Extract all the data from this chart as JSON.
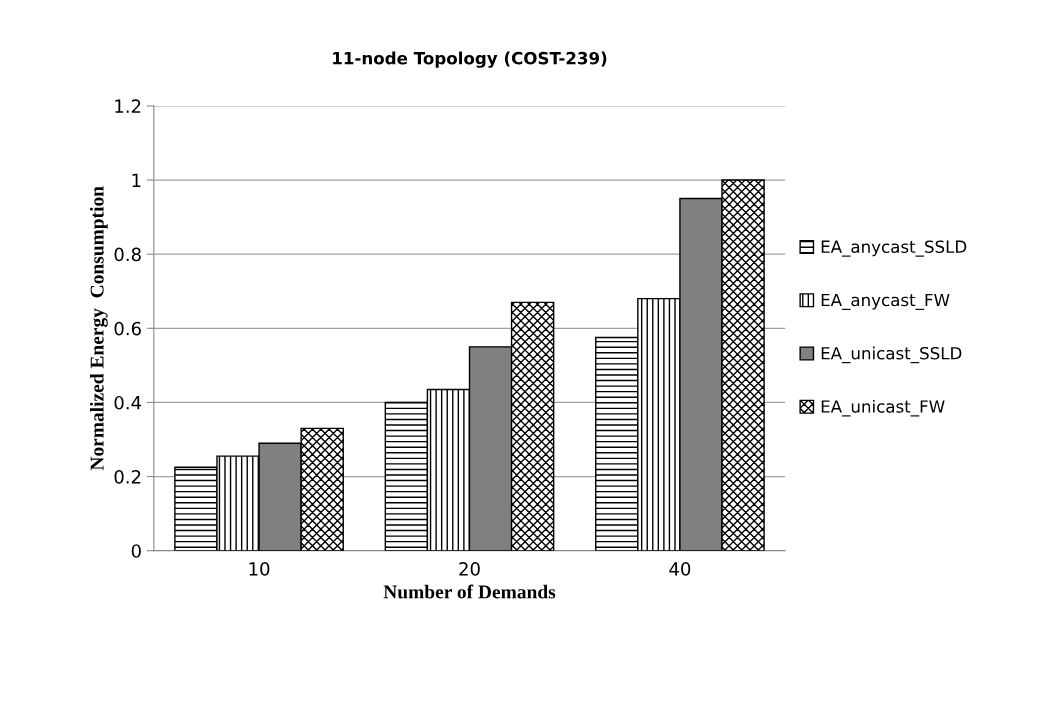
{
  "chart_data": {
    "type": "bar",
    "title": "11-node Topology (COST-239)",
    "xlabel": "Number of Demands",
    "ylabel": "Normalized Energy  Consumption",
    "categories": [
      "10",
      "20",
      "40"
    ],
    "series": [
      {
        "name": "EA_anycast_SSLD",
        "color": "#000000",
        "values": [
          0.225,
          0.4,
          0.575
        ]
      },
      {
        "name": "EA_anycast_FW",
        "color": "#000000",
        "values": [
          0.255,
          0.435,
          0.68
        ]
      },
      {
        "name": "EA_unicast_SSLD",
        "color": "#808080",
        "values": [
          0.29,
          0.55,
          0.95
        ]
      },
      {
        "name": "EA_unicast_FW",
        "color": "#000000",
        "values": [
          0.33,
          0.67,
          1.0
        ]
      }
    ],
    "ylim": [
      0,
      1.2
    ],
    "yticks": [
      0,
      0.2,
      0.4,
      0.6,
      0.8,
      1,
      1.2
    ],
    "grid": "y",
    "legend": "right"
  }
}
